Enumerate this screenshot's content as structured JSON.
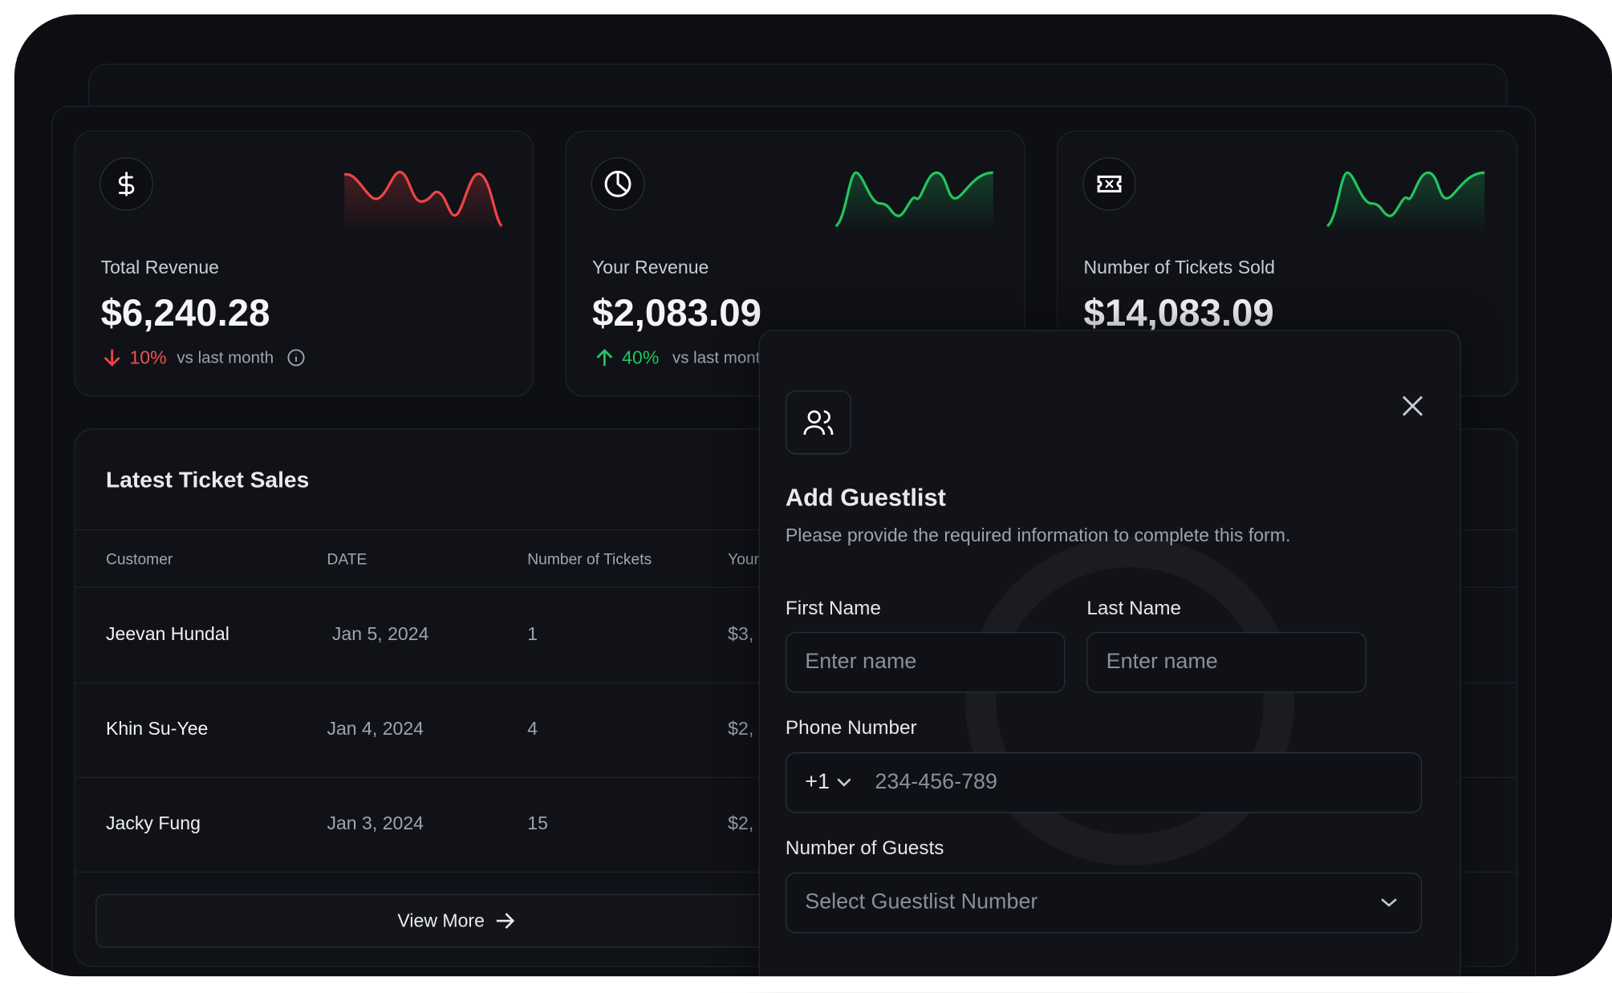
{
  "cards": [
    {
      "label": "Total Revenue",
      "value": "$6,240.28",
      "change": "10%",
      "comparison": "vs last month"
    },
    {
      "label": "Your Revenue",
      "value": "$2,083.09",
      "change": "40%",
      "comparison": "vs last month"
    },
    {
      "label": "Number of Tickets Sold",
      "value": "$14,083.09"
    }
  ],
  "table": {
    "title": "Latest Ticket Sales",
    "columns": [
      "Customer",
      "DATE",
      "Number of Tickets",
      "Your"
    ],
    "rows": [
      [
        "Jeevan Hundal",
        "Jan 5, 2024",
        "1",
        "$3,"
      ],
      [
        "Khin Su-Yee",
        "Jan 4, 2024",
        "4",
        "$2,"
      ],
      [
        "Jacky Fung",
        "Jan 3, 2024",
        "15",
        "$2,"
      ]
    ],
    "button": "View More"
  },
  "modal": {
    "title": "Add Guestlist",
    "subtitle": "Please provide the required information to complete this form.",
    "first_name": {
      "label": "First Name",
      "placeholder": "Enter name"
    },
    "last_name": {
      "label": "Last Name",
      "placeholder": "Enter name"
    },
    "phone": {
      "label": "Phone Number",
      "code": "+1",
      "placeholder": "234-456-789"
    },
    "guests": {
      "label": "Number of Guests",
      "placeholder": "Select Guestlist Number"
    }
  }
}
